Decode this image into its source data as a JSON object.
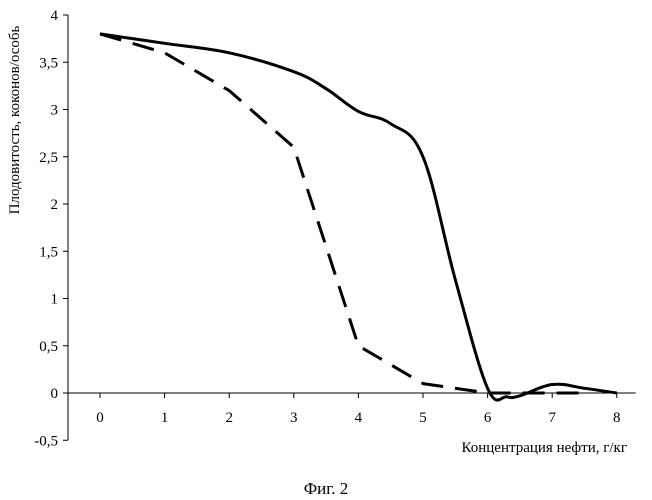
{
  "chart_data": {
    "type": "line",
    "title": "",
    "xlabel": "Концентрация нефти, г/кг",
    "ylabel": "Плодовитость, коконов/особь",
    "xlim": [
      -0.5,
      8.2
    ],
    "ylim": [
      -0.5,
      4
    ],
    "x_ticks": [
      "0",
      "1",
      "2",
      "3",
      "4",
      "5",
      "6",
      "7",
      "8"
    ],
    "y_ticks": [
      "4",
      "3,5",
      "3",
      "2,5",
      "2",
      "1,5",
      "1",
      "0,5",
      "0",
      "-0,5"
    ],
    "y_tick_values": [
      4,
      3.5,
      3,
      2.5,
      2,
      1.5,
      1,
      0.5,
      0,
      -0.5
    ],
    "grid": false,
    "legend": "none",
    "series": [
      {
        "style": "solid",
        "x": [
          0,
          1,
          2,
          3,
          3.5,
          4,
          4.5,
          5,
          5.5,
          6,
          6.3,
          6.5,
          7,
          7.5,
          8
        ],
        "y": [
          3.8,
          3.7,
          3.6,
          3.4,
          3.22,
          2.98,
          2.85,
          2.5,
          1.2,
          0.05,
          -0.04,
          -0.03,
          0.09,
          0.05,
          0
        ]
      },
      {
        "style": "dashed",
        "x": [
          0,
          1,
          2,
          3,
          4,
          5,
          6,
          7,
          7.5
        ],
        "y": [
          3.8,
          3.6,
          3.2,
          2.6,
          0.5,
          0.1,
          0,
          0,
          0
        ]
      }
    ]
  },
  "caption": "Фиг. 2"
}
